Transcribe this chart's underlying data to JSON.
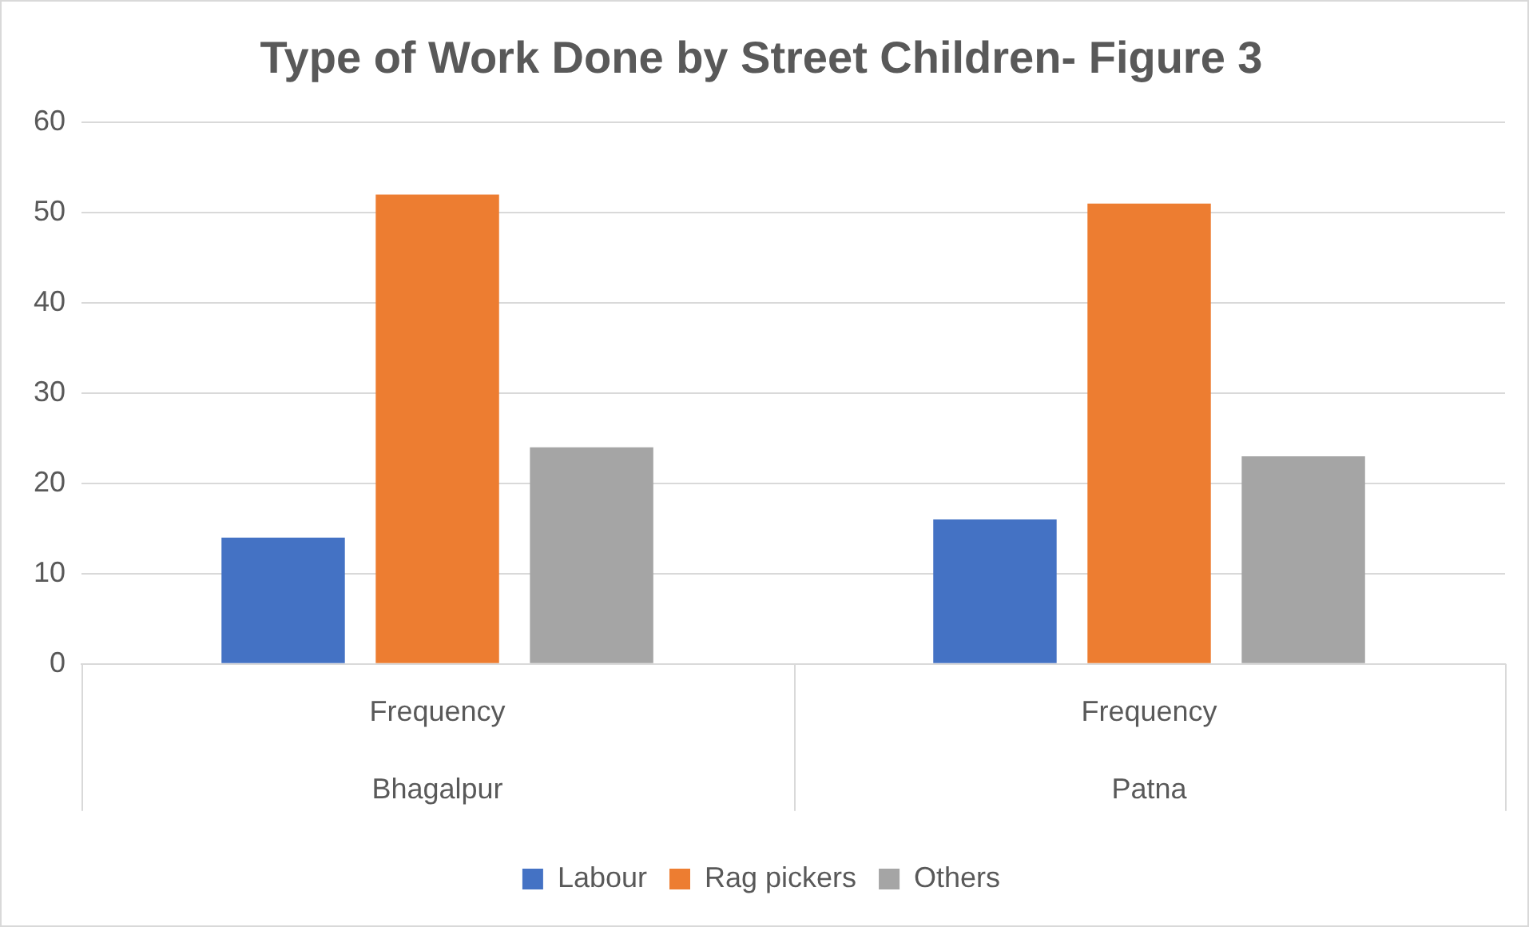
{
  "chart_data": {
    "type": "bar",
    "title": "Type of Work Done by Street Children- Figure 3",
    "categories": [
      "Frequency",
      "Frequency"
    ],
    "series": [
      {
        "name": "Labour",
        "color": "#4472c4",
        "values": [
          14,
          16
        ]
      },
      {
        "name": "Rag pickers",
        "color": "#ed7d31",
        "values": [
          52,
          51
        ]
      },
      {
        "name": "Others",
        "color": "#a5a5a5",
        "values": [
          24,
          23
        ]
      }
    ],
    "annotations": [
      "Bhagalpur",
      "Patna"
    ],
    "ylim": [
      0,
      60
    ],
    "yticks": [
      0,
      10,
      20,
      30,
      40,
      50,
      60
    ],
    "grid": "y",
    "legend": "bottom"
  }
}
